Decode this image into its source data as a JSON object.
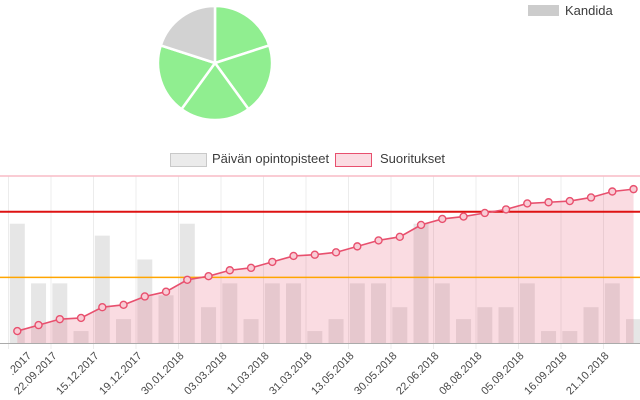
{
  "pie_legend": {
    "label": "Kandida"
  },
  "main_legend": {
    "bars_label": "Päivän opintopisteet",
    "line_label": "Suoritukset",
    "bars_swatch_fill": "#ebebeb",
    "bars_swatch_border": "#c9c9c9",
    "line_swatch_fill": "#fbdce2",
    "line_swatch_border": "#e8506e"
  },
  "colors": {
    "pie_green": "#90ee90",
    "pie_gray": "#d2d2d2",
    "bar_gray": "#e6e6e6",
    "line_pink": "#e8506e",
    "marker_fill": "#f8ccd5",
    "area_pink": "#e8506e",
    "grid": "#ececec",
    "axis": "#ababab",
    "ref_red": "#de1212",
    "ref_orange": "#ffa500",
    "ref_topline": "#f8bcc6",
    "label_text": "#4a4a4a"
  },
  "chart_data": [
    {
      "type": "pie",
      "title": "",
      "legend_entries": [
        "Kandida"
      ],
      "legend_position": "top-right",
      "values": [
        20,
        20,
        20,
        20,
        20
      ],
      "slice_colors": [
        "#90ee90",
        "#90ee90",
        "#90ee90",
        "#90ee90",
        "#d2d2d2"
      ],
      "start_angle_deg": 0,
      "direction": "clockwise"
    },
    {
      "type": "bar",
      "subtype": "combo-bar-line-area",
      "title": "",
      "xlabel": "",
      "ylabel": "",
      "grid": "vertical-only",
      "legend_position": "top-center",
      "categories": [
        ".2017",
        "22.09.2017",
        "15.12.2017",
        "19.12.2017",
        "30.01.2018",
        "03.03.2018",
        "11.03.2018",
        "31.03.2018",
        "13.05.2018",
        "30.05.2018",
        "22.06.2018",
        "08.08.2018",
        "05.09.2018",
        "16.09.2018",
        "21.10.2018"
      ],
      "categories_note": "15 tick labels, one per 2 data points; first label truncated at screen edge",
      "series": [
        {
          "name": "Päivän opintopisteet",
          "type": "bar",
          "color": "#e6e6e6",
          "axis_range": [
            0,
            14
          ],
          "values": [
            10,
            5,
            5,
            1,
            9,
            2,
            7,
            4,
            10,
            3,
            5,
            2,
            5,
            5,
            1,
            2,
            5,
            5,
            3,
            10,
            5,
            2,
            3,
            3,
            5,
            1,
            1,
            3,
            5,
            2
          ]
        },
        {
          "name": "Suoritukset",
          "type": "line-area",
          "color": "#e8506e",
          "marker": "circle",
          "marker_fill": "#f8ccd5",
          "area_opacity": 0.2,
          "axis_range": [
            0,
            140
          ],
          "values": [
            10,
            15,
            20,
            21,
            30,
            32,
            39,
            43,
            53,
            56,
            61,
            63,
            68,
            73,
            74,
            76,
            81,
            86,
            89,
            99,
            104,
            106,
            109,
            112,
            117,
            118,
            119,
            122,
            127,
            129
          ]
        }
      ],
      "reference_lines": [
        {
          "value": 140,
          "axis": "line",
          "color": "#f8bcc6",
          "width": 1.5
        },
        {
          "value": 110,
          "axis": "line",
          "color": "#de1212",
          "width": 2
        },
        {
          "value": 55,
          "axis": "line",
          "color": "#ffa500",
          "width": 1.5
        }
      ]
    }
  ]
}
